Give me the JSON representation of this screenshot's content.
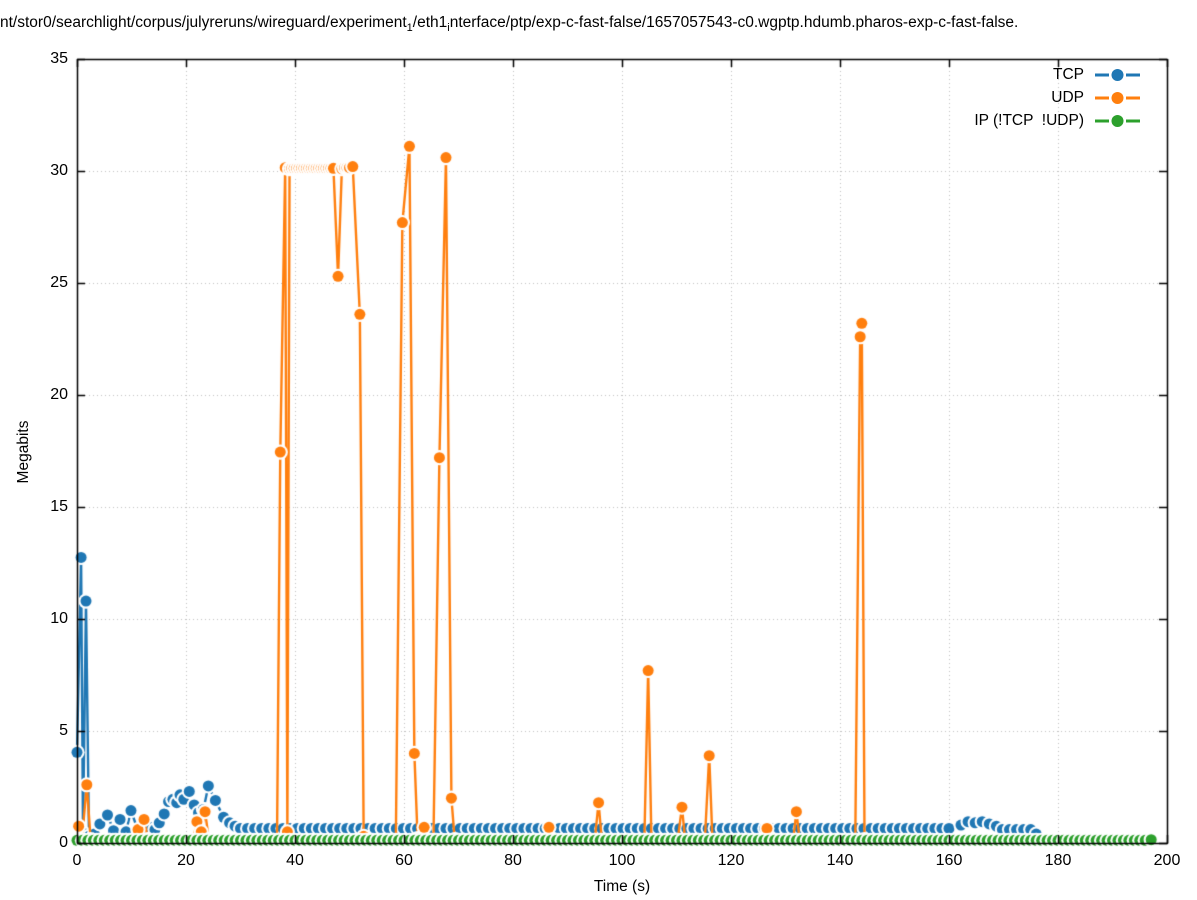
{
  "title": {
    "parts": [
      {
        "text": "nt/stor0/searchlight/corpus/julyreruns/wireguard/experiment"
      },
      {
        "sub": "1"
      },
      {
        "text": "/eth1"
      },
      {
        "sub": "i"
      },
      {
        "text": "nterface/ptp/exp-c-fast-false/1657057543-c0.wgptp.hdumb.pharos-exp-c-fast-false."
      }
    ]
  },
  "axes": {
    "x": {
      "label": "Time (s)",
      "min": 0,
      "max": 200,
      "ticks": [
        0,
        20,
        40,
        60,
        80,
        100,
        120,
        140,
        160,
        180,
        200
      ]
    },
    "y": {
      "label": "Megabits",
      "min": 0,
      "max": 35,
      "ticks": [
        0,
        5,
        10,
        15,
        20,
        25,
        30,
        35
      ]
    }
  },
  "legend": {
    "position": "top-right",
    "items": [
      {
        "id": "tcp",
        "label": "TCP",
        "color": "#1f77b4"
      },
      {
        "id": "udp",
        "label": "UDP",
        "color": "#ff7f0e"
      },
      {
        "id": "ip",
        "label": "IP (!TCP  !UDP)",
        "color": "#2ca02c"
      }
    ]
  },
  "colors": {
    "grid": "#c0c0c0",
    "border": "#000000",
    "background": "#ffffff"
  },
  "chart_data": {
    "type": "line",
    "title": "nt/stor0/searchlight/corpus/julyreruns/wireguard/experiment_1/eth1_interface/ptp/exp-c-fast-false/1657057543-c0.wgptp.hdumb.pharos-exp-c-fast-false.",
    "xlabel": "Time (s)",
    "ylabel": "Megabits",
    "xlim": [
      0,
      200
    ],
    "ylim": [
      0,
      35
    ],
    "grid": true,
    "marker": "filled-circle-with-erase-halo",
    "series": [
      {
        "name": "TCP",
        "color": "#1f77b4",
        "path": [
          {
            "pts": [
              [
                0,
                4.05
              ],
              [
                0.75,
                12.75
              ],
              [
                1.1,
                0.45
              ],
              [
                1.65,
                10.8
              ],
              [
                2.2,
                0.3
              ],
              [
                3.2,
                0.4
              ],
              [
                4.2,
                0.85
              ],
              [
                5.6,
                1.25
              ],
              [
                6.7,
                0.55
              ],
              [
                7.9,
                1.05
              ],
              [
                9.0,
                0.5
              ],
              [
                9.9,
                1.45
              ],
              [
                11.2,
                0.55
              ],
              [
                12.4,
                0.6
              ],
              [
                13.5,
                0.7
              ],
              [
                14.3,
                0.6
              ],
              [
                15.1,
                0.9
              ],
              [
                16.0,
                1.3
              ],
              [
                16.8,
                1.85
              ],
              [
                17.6,
                1.95
              ],
              [
                18.3,
                1.8
              ],
              [
                18.9,
                2.15
              ],
              [
                19.6,
                1.95
              ],
              [
                20.6,
                2.3
              ],
              [
                21.5,
                1.7
              ],
              [
                22.3,
                1.35
              ],
              [
                23.2,
                1.5
              ],
              [
                24.1,
                2.55
              ],
              [
                25.4,
                1.9
              ],
              [
                26.9,
                1.15
              ],
              [
                28.0,
                0.9
              ],
              [
                29.0,
                0.75
              ]
            ]
          },
          {
            "run": {
              "from": 30,
              "to": 161,
              "step": 1.3,
              "v": 0.65
            }
          },
          {
            "pts": [
              [
                162.2,
                0.8
              ],
              [
                163.5,
                0.95
              ],
              [
                164.8,
                0.9
              ],
              [
                166.1,
                0.95
              ],
              [
                167.4,
                0.85
              ],
              [
                168.7,
                0.75
              ]
            ]
          },
          {
            "run": {
              "from": 169.8,
              "to": 175,
              "step": 1.3,
              "v": 0.6
            }
          },
          {
            "pts": [
              [
                176,
                0.4
              ]
            ]
          }
        ]
      },
      {
        "name": "UDP",
        "color": "#ff7f0e",
        "path": [
          {
            "pts": [
              [
                0.3,
                0.75
              ],
              [
                0.9,
                0.15
              ],
              [
                1.8,
                2.6
              ],
              [
                2.5,
                0.15
              ]
            ]
          },
          {
            "run": {
              "from": 3.0,
              "to": 10.8,
              "step": 0.6,
              "v": 0.12
            }
          },
          {
            "pts": [
              [
                11.2,
                0.6
              ],
              [
                12.3,
                1.05
              ],
              [
                13.0,
                0.15
              ]
            ]
          },
          {
            "run": {
              "from": 13.5,
              "to": 21.5,
              "step": 0.6,
              "v": 0.12
            }
          },
          {
            "pts": [
              [
                22.0,
                0.95
              ],
              [
                22.8,
                0.5
              ],
              [
                23.5,
                1.4
              ],
              [
                24.2,
                0.15
              ]
            ]
          },
          {
            "run": {
              "from": 24.7,
              "to": 36.8,
              "step": 0.6,
              "v": 0.12
            }
          },
          {
            "pts": [
              [
                37.3,
                17.45
              ],
              [
                38.2,
                30.15
              ],
              [
                38.6,
                0.5
              ],
              [
                39.0,
                30.1
              ]
            ]
          },
          {
            "run": {
              "from": 39.4,
              "to": 47.2,
              "step": 0.45,
              "v": 30.12
            }
          },
          {
            "pts": [
              [
                47.9,
                25.3
              ],
              [
                48.6,
                30.1
              ]
            ]
          },
          {
            "run": {
              "from": 49.1,
              "to": 50.2,
              "step": 0.45,
              "v": 30.15
            }
          },
          {
            "pts": [
              [
                50.6,
                30.2
              ],
              [
                51.9,
                23.6
              ],
              [
                52.6,
                0.3
              ]
            ]
          },
          {
            "run": {
              "from": 53.1,
              "to": 58.9,
              "step": 0.6,
              "v": 0.12
            }
          },
          {
            "pts": [
              [
                59.7,
                27.7
              ],
              [
                61.0,
                31.1
              ],
              [
                61.9,
                4.0
              ],
              [
                62.5,
                0.2
              ],
              [
                63.7,
                0.7
              ],
              [
                64.3,
                0.12
              ]
            ]
          },
          {
            "run": {
              "from": 64.8,
              "to": 65.9,
              "step": 0.6,
              "v": 0.12
            }
          },
          {
            "pts": [
              [
                66.5,
                17.2
              ],
              [
                67.7,
                30.6
              ],
              [
                68.7,
                2.0
              ],
              [
                69.3,
                0.15
              ]
            ]
          },
          {
            "run": {
              "from": 69.8,
              "to": 86.0,
              "step": 0.6,
              "v": 0.12
            }
          },
          {
            "pts": [
              [
                86.6,
                0.7
              ]
            ]
          },
          {
            "run": {
              "from": 87.2,
              "to": 95.1,
              "step": 0.6,
              "v": 0.12
            }
          },
          {
            "pts": [
              [
                95.7,
                1.8
              ]
            ]
          },
          {
            "run": {
              "from": 96.3,
              "to": 104.2,
              "step": 0.6,
              "v": 0.12
            }
          },
          {
            "pts": [
              [
                104.8,
                7.7
              ]
            ]
          },
          {
            "run": {
              "from": 105.4,
              "to": 110.4,
              "step": 0.6,
              "v": 0.12
            }
          },
          {
            "pts": [
              [
                111.0,
                1.6
              ]
            ]
          },
          {
            "run": {
              "from": 111.6,
              "to": 115.4,
              "step": 0.6,
              "v": 0.12
            }
          },
          {
            "pts": [
              [
                116.0,
                3.9
              ]
            ]
          },
          {
            "run": {
              "from": 116.6,
              "to": 126.0,
              "step": 0.6,
              "v": 0.12
            }
          },
          {
            "pts": [
              [
                126.6,
                0.65
              ]
            ]
          },
          {
            "run": {
              "from": 127.2,
              "to": 131.4,
              "step": 0.6,
              "v": 0.12
            }
          },
          {
            "pts": [
              [
                132.0,
                1.4
              ]
            ]
          },
          {
            "run": {
              "from": 132.6,
              "to": 143.2,
              "step": 0.6,
              "v": 0.12
            }
          },
          {
            "pts": [
              [
                143.7,
                22.6
              ],
              [
                144.0,
                23.2
              ],
              [
                144.5,
                0.15
              ]
            ]
          },
          {
            "run": {
              "from": 145.0,
              "to": 146.2,
              "step": 0.6,
              "v": 0.12
            }
          }
        ]
      },
      {
        "name": "IP (!TCP  !UDP)",
        "color": "#2ca02c",
        "path": [
          {
            "run": {
              "from": 0,
              "to": 196.0,
              "step": 1.0,
              "v": 0.12
            }
          },
          {
            "pts": [
              [
                197.1,
                0.15
              ]
            ]
          }
        ]
      }
    ]
  }
}
